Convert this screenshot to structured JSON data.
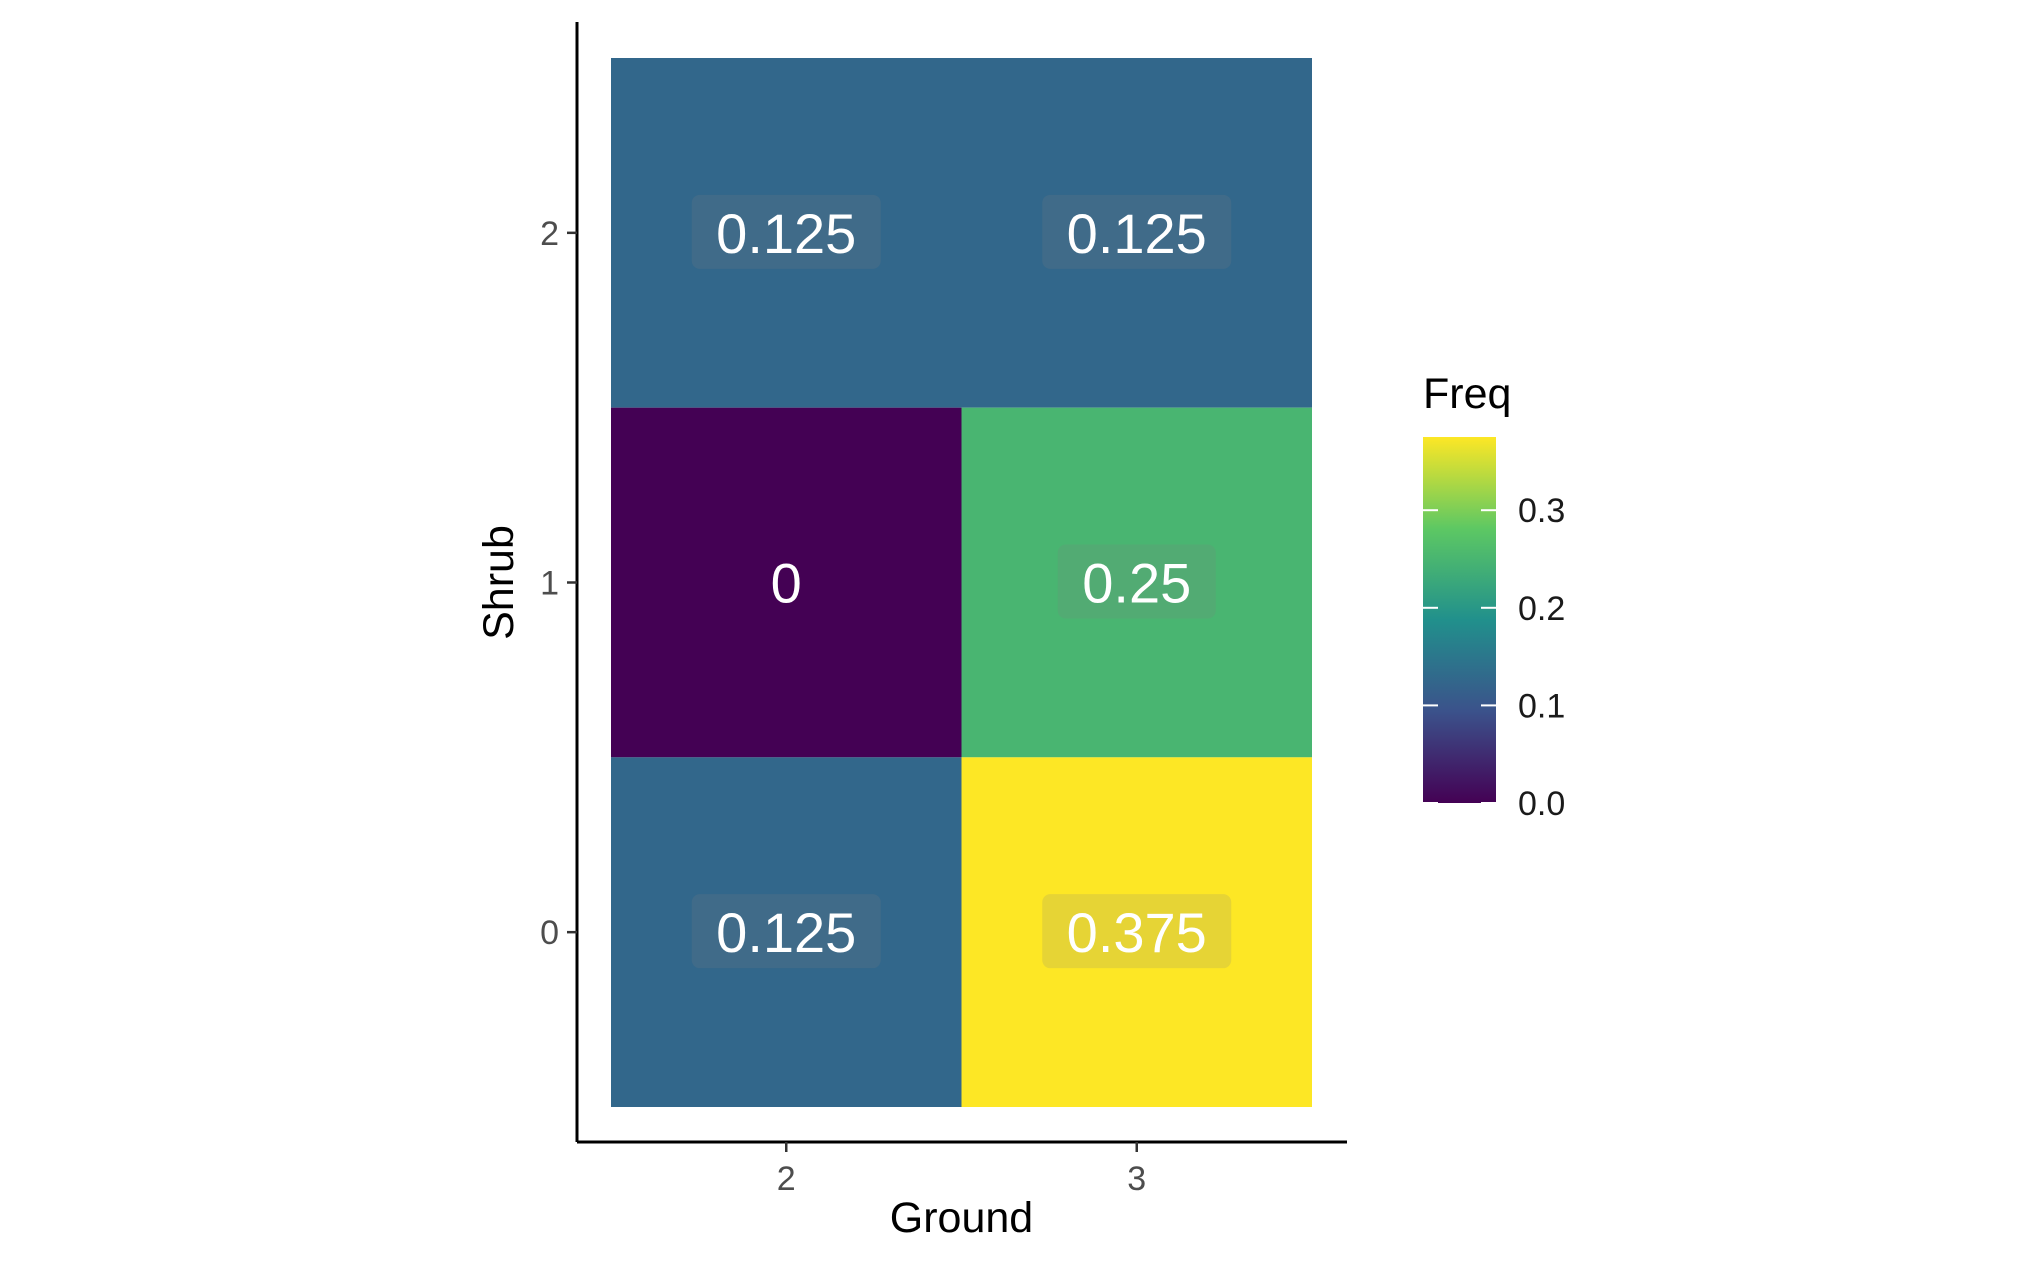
{
  "chart_data": {
    "type": "heatmap",
    "x": [
      "2",
      "3"
    ],
    "y": [
      "0",
      "1",
      "2"
    ],
    "xlabel": "Ground",
    "ylabel": "Shrub",
    "cells": [
      {
        "x": "2",
        "y": "2",
        "value": 0.125,
        "label": "0.125"
      },
      {
        "x": "3",
        "y": "2",
        "value": 0.125,
        "label": "0.125"
      },
      {
        "x": "2",
        "y": "1",
        "value": 0,
        "label": "0"
      },
      {
        "x": "3",
        "y": "1",
        "value": 0.25,
        "label": "0.25"
      },
      {
        "x": "2",
        "y": "0",
        "value": 0.125,
        "label": "0.125"
      },
      {
        "x": "3",
        "y": "0",
        "value": 0.375,
        "label": "0.375"
      }
    ],
    "legend": {
      "title": "Freq",
      "placement": "right",
      "ticks": [
        "0.0",
        "0.1",
        "0.2",
        "0.3"
      ],
      "tick_values": [
        0,
        0.1,
        0.2,
        0.3
      ],
      "range": [
        0,
        0.375
      ],
      "palette": "viridis",
      "colors": [
        "#440154",
        "#3b528b",
        "#21908c",
        "#5dc863",
        "#fde725"
      ]
    },
    "grid": false
  }
}
